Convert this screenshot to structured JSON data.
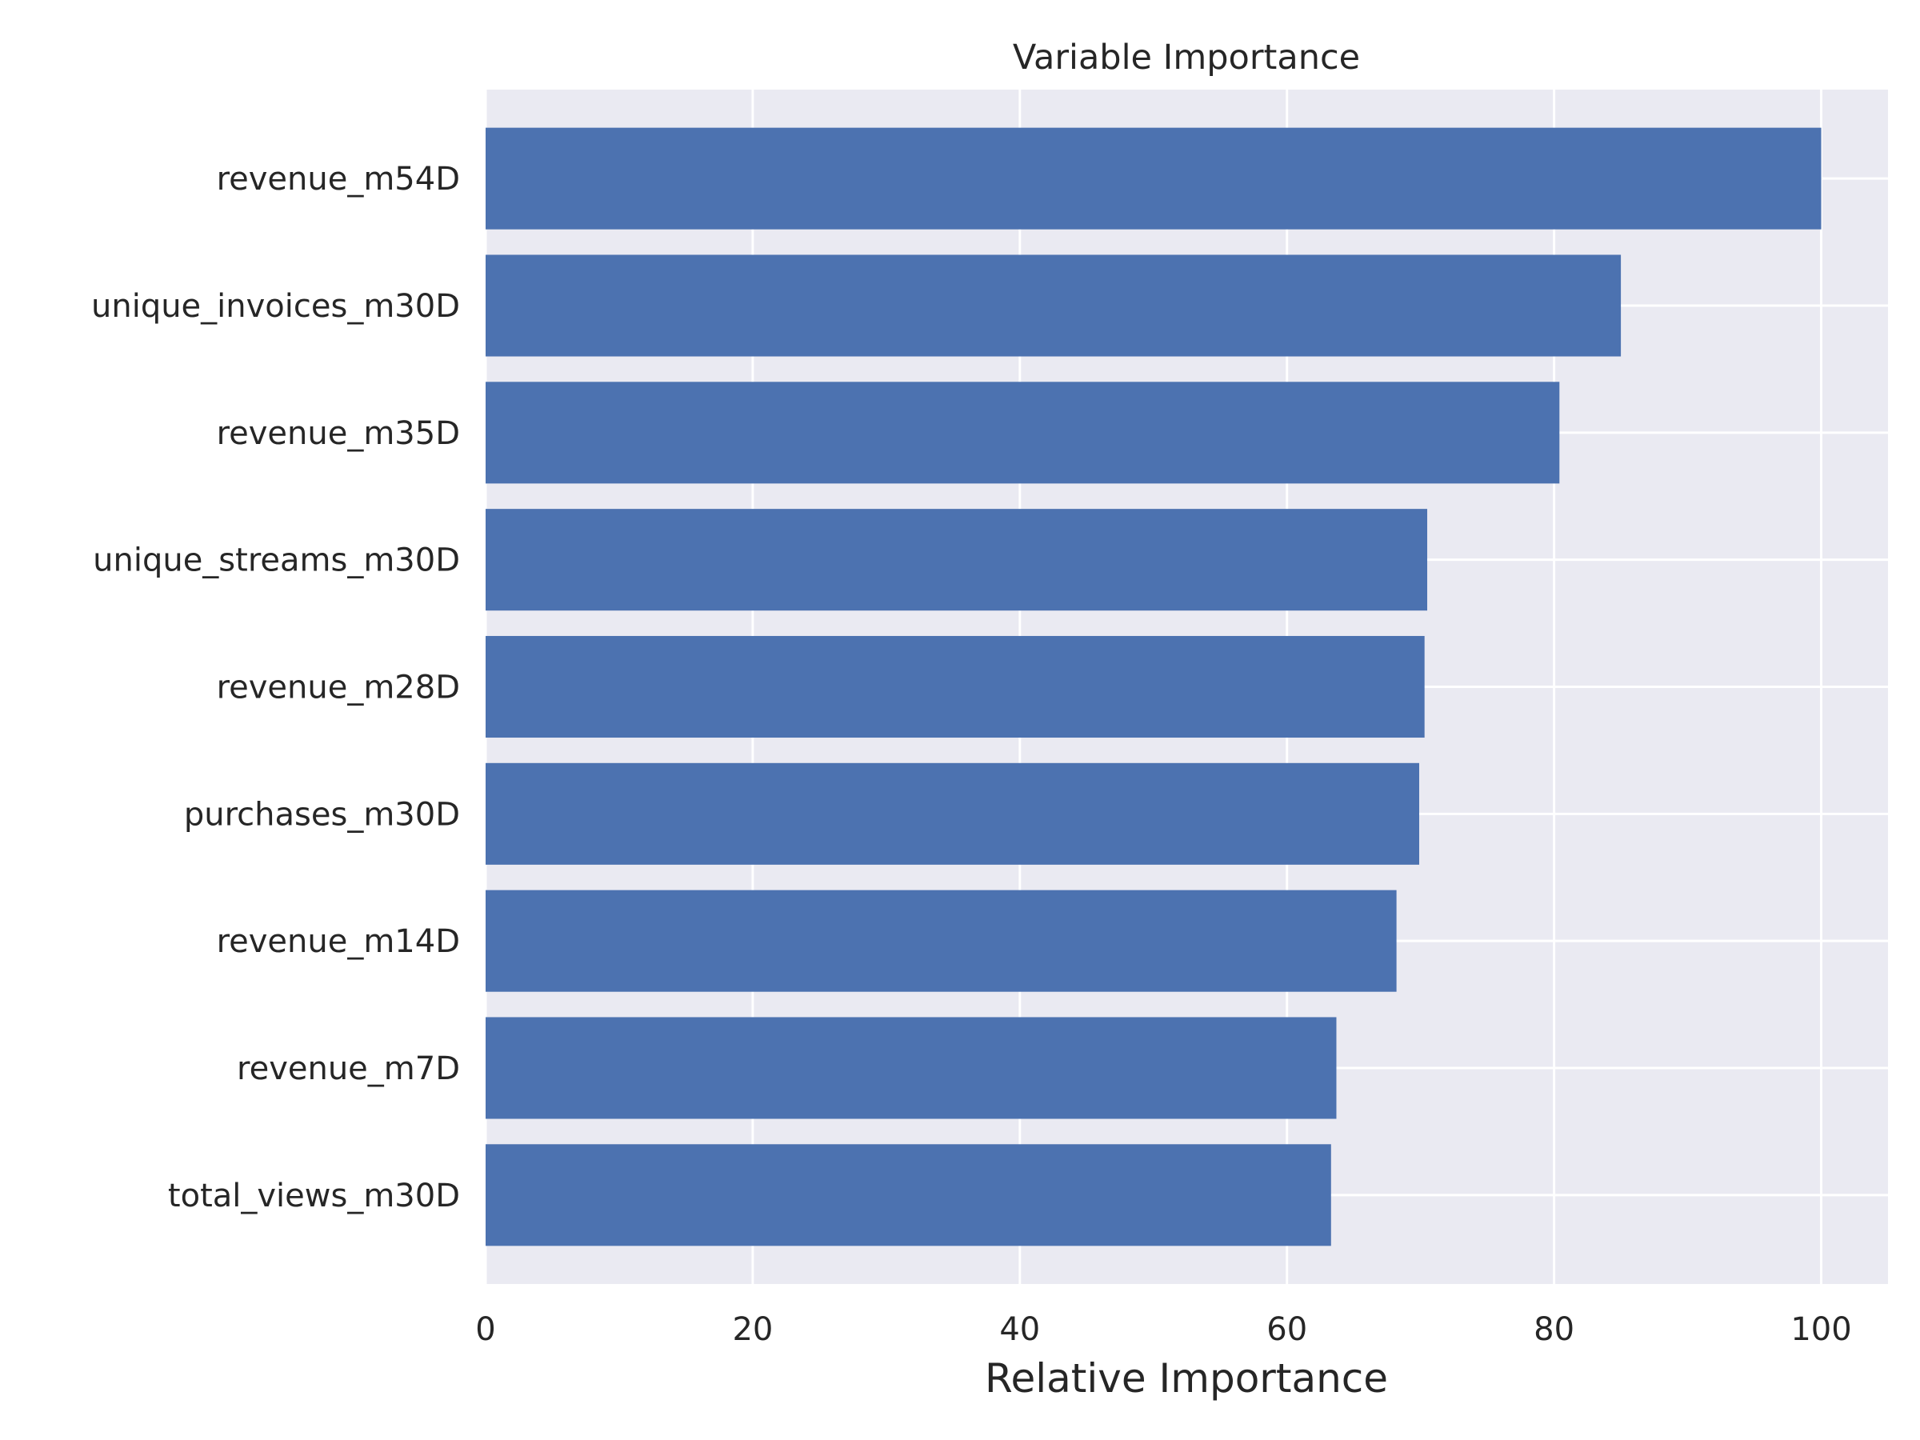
{
  "chart_data": {
    "type": "bar",
    "orientation": "horizontal",
    "title": "Variable Importance",
    "xlabel": "Relative Importance",
    "ylabel": "",
    "xlim": [
      0,
      105
    ],
    "xticks": [
      0,
      20,
      40,
      60,
      80,
      100
    ],
    "xtick_labels": [
      "0",
      "20",
      "40",
      "60",
      "80",
      "100"
    ],
    "categories": [
      "revenue_m54D",
      "unique_invoices_m30D",
      "revenue_m35D",
      "unique_streams_m30D",
      "revenue_m28D",
      "purchases_m30D",
      "revenue_m14D",
      "revenue_m7D",
      "total_views_m30D"
    ],
    "values": [
      100,
      85,
      80.4,
      70.5,
      70.3,
      69.9,
      68.2,
      63.7,
      63.3
    ],
    "grid": true,
    "legend": "none",
    "colors": {
      "bar": "#4c72b0",
      "plot_background": "#eaeaf2",
      "grid": "#ffffff",
      "text": "#262626"
    }
  }
}
